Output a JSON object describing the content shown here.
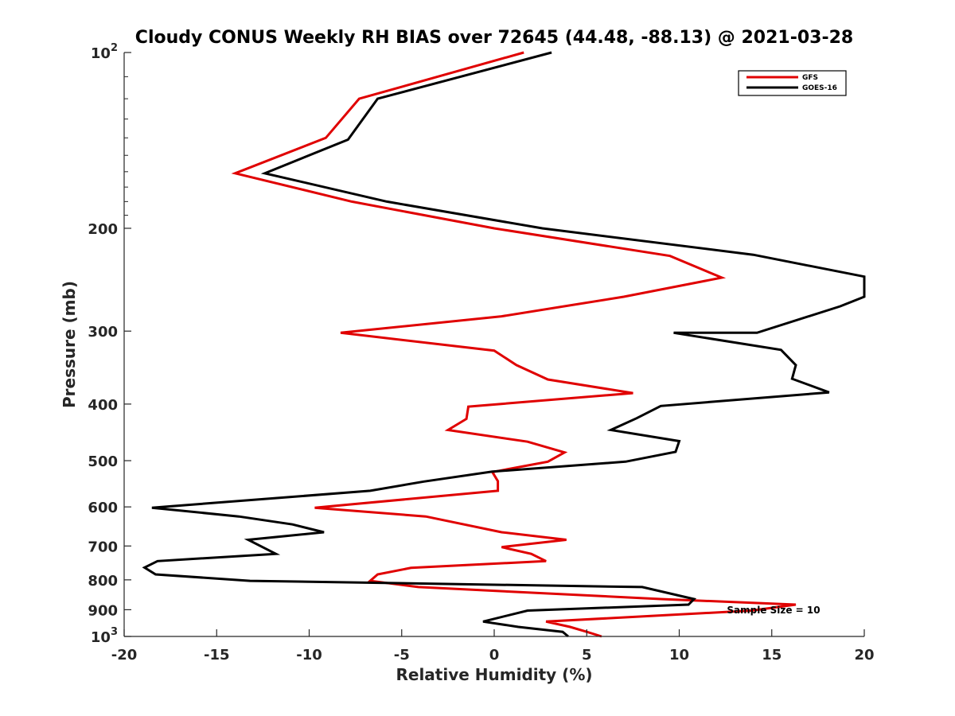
{
  "chart_data": {
    "type": "line",
    "title": "Cloudy CONUS Weekly RH BIAS over 72645 (44.48, -88.13) @ 2021-03-28",
    "xlabel": "Relative Humidity (%)",
    "ylabel": "Pressure (mb)",
    "xlim": [
      -20,
      20
    ],
    "ylim": [
      100,
      1000
    ],
    "y_scale": "log",
    "y_reversed": true,
    "x_ticks": [
      -20,
      -15,
      -10,
      -5,
      0,
      5,
      10,
      15,
      20
    ],
    "y_ticks": [
      {
        "value": 100,
        "label": "10",
        "sup": "2"
      },
      {
        "value": 200,
        "label": "200"
      },
      {
        "value": 300,
        "label": "300"
      },
      {
        "value": 400,
        "label": "400"
      },
      {
        "value": 500,
        "label": "500"
      },
      {
        "value": 600,
        "label": "600"
      },
      {
        "value": 700,
        "label": "700"
      },
      {
        "value": 800,
        "label": "800"
      },
      {
        "value": 900,
        "label": "900"
      },
      {
        "value": 1000,
        "label": "10",
        "sup": "3"
      }
    ],
    "grid": false,
    "legend_position": "top-right",
    "annotation": "Sample Size = 10",
    "series": [
      {
        "name": "GFS",
        "color": "#e00000",
        "points": [
          {
            "x": 1.6,
            "p": 100
          },
          {
            "x": -7.3,
            "p": 120
          },
          {
            "x": -9.1,
            "p": 140
          },
          {
            "x": -14.0,
            "p": 161
          },
          {
            "x": -7.7,
            "p": 180
          },
          {
            "x": 0.0,
            "p": 200
          },
          {
            "x": 9.5,
            "p": 223
          },
          {
            "x": 12.3,
            "p": 243
          },
          {
            "x": 7.0,
            "p": 262
          },
          {
            "x": 0.4,
            "p": 283
          },
          {
            "x": -8.3,
            "p": 302
          },
          {
            "x": 0.0,
            "p": 324
          },
          {
            "x": 1.2,
            "p": 343
          },
          {
            "x": 2.9,
            "p": 363
          },
          {
            "x": 7.5,
            "p": 383
          },
          {
            "x": -1.4,
            "p": 404
          },
          {
            "x": -1.5,
            "p": 424
          },
          {
            "x": -2.5,
            "p": 443
          },
          {
            "x": 1.8,
            "p": 464
          },
          {
            "x": 3.8,
            "p": 484
          },
          {
            "x": 2.9,
            "p": 502
          },
          {
            "x": -0.1,
            "p": 523
          },
          {
            "x": 0.2,
            "p": 542
          },
          {
            "x": 0.2,
            "p": 563
          },
          {
            "x": -9.7,
            "p": 602
          },
          {
            "x": -3.7,
            "p": 623
          },
          {
            "x": 0.4,
            "p": 663
          },
          {
            "x": 3.9,
            "p": 683
          },
          {
            "x": 0.4,
            "p": 703
          },
          {
            "x": 2.0,
            "p": 722
          },
          {
            "x": 2.8,
            "p": 743
          },
          {
            "x": -4.5,
            "p": 763
          },
          {
            "x": -6.3,
            "p": 783
          },
          {
            "x": -6.7,
            "p": 803
          },
          {
            "x": -4.1,
            "p": 823
          },
          {
            "x": 9.0,
            "p": 863
          },
          {
            "x": 16.3,
            "p": 882
          },
          {
            "x": 13.9,
            "p": 903
          },
          {
            "x": 2.8,
            "p": 943
          },
          {
            "x": 4.1,
            "p": 963
          },
          {
            "x": 5.0,
            "p": 982
          },
          {
            "x": 5.8,
            "p": 1000
          }
        ]
      },
      {
        "name": "GOES-16",
        "color": "#000000",
        "points": [
          {
            "x": 3.1,
            "p": 100
          },
          {
            "x": -6.3,
            "p": 120
          },
          {
            "x": -7.9,
            "p": 141
          },
          {
            "x": -12.4,
            "p": 161
          },
          {
            "x": -5.8,
            "p": 180
          },
          {
            "x": 2.6,
            "p": 200
          },
          {
            "x": 14.0,
            "p": 222
          },
          {
            "x": 20.0,
            "p": 242
          },
          {
            "x": 20.0,
            "p": 262
          },
          {
            "x": 18.7,
            "p": 272
          },
          {
            "x": 14.2,
            "p": 302
          },
          {
            "x": 9.7,
            "p": 302
          },
          {
            "x": 15.5,
            "p": 323
          },
          {
            "x": 16.3,
            "p": 343
          },
          {
            "x": 16.1,
            "p": 362
          },
          {
            "x": 18.1,
            "p": 382
          },
          {
            "x": 9.0,
            "p": 403
          },
          {
            "x": 7.7,
            "p": 423
          },
          {
            "x": 6.3,
            "p": 443
          },
          {
            "x": 10.0,
            "p": 463
          },
          {
            "x": 9.8,
            "p": 483
          },
          {
            "x": 7.1,
            "p": 502
          },
          {
            "x": -0.1,
            "p": 522
          },
          {
            "x": -3.8,
            "p": 543
          },
          {
            "x": -6.7,
            "p": 563
          },
          {
            "x": -18.5,
            "p": 602
          },
          {
            "x": -13.8,
            "p": 623
          },
          {
            "x": -10.9,
            "p": 643
          },
          {
            "x": -9.2,
            "p": 663
          },
          {
            "x": -13.3,
            "p": 683
          },
          {
            "x": -11.8,
            "p": 722
          },
          {
            "x": -18.2,
            "p": 743
          },
          {
            "x": -18.9,
            "p": 762
          },
          {
            "x": -18.3,
            "p": 783
          },
          {
            "x": -13.2,
            "p": 803
          },
          {
            "x": 8.0,
            "p": 823
          },
          {
            "x": 10.8,
            "p": 863
          },
          {
            "x": 10.5,
            "p": 882
          },
          {
            "x": 1.8,
            "p": 903
          },
          {
            "x": -0.6,
            "p": 943
          },
          {
            "x": 1.3,
            "p": 963
          },
          {
            "x": 3.7,
            "p": 982
          },
          {
            "x": 4.0,
            "p": 1000
          }
        ]
      }
    ]
  }
}
